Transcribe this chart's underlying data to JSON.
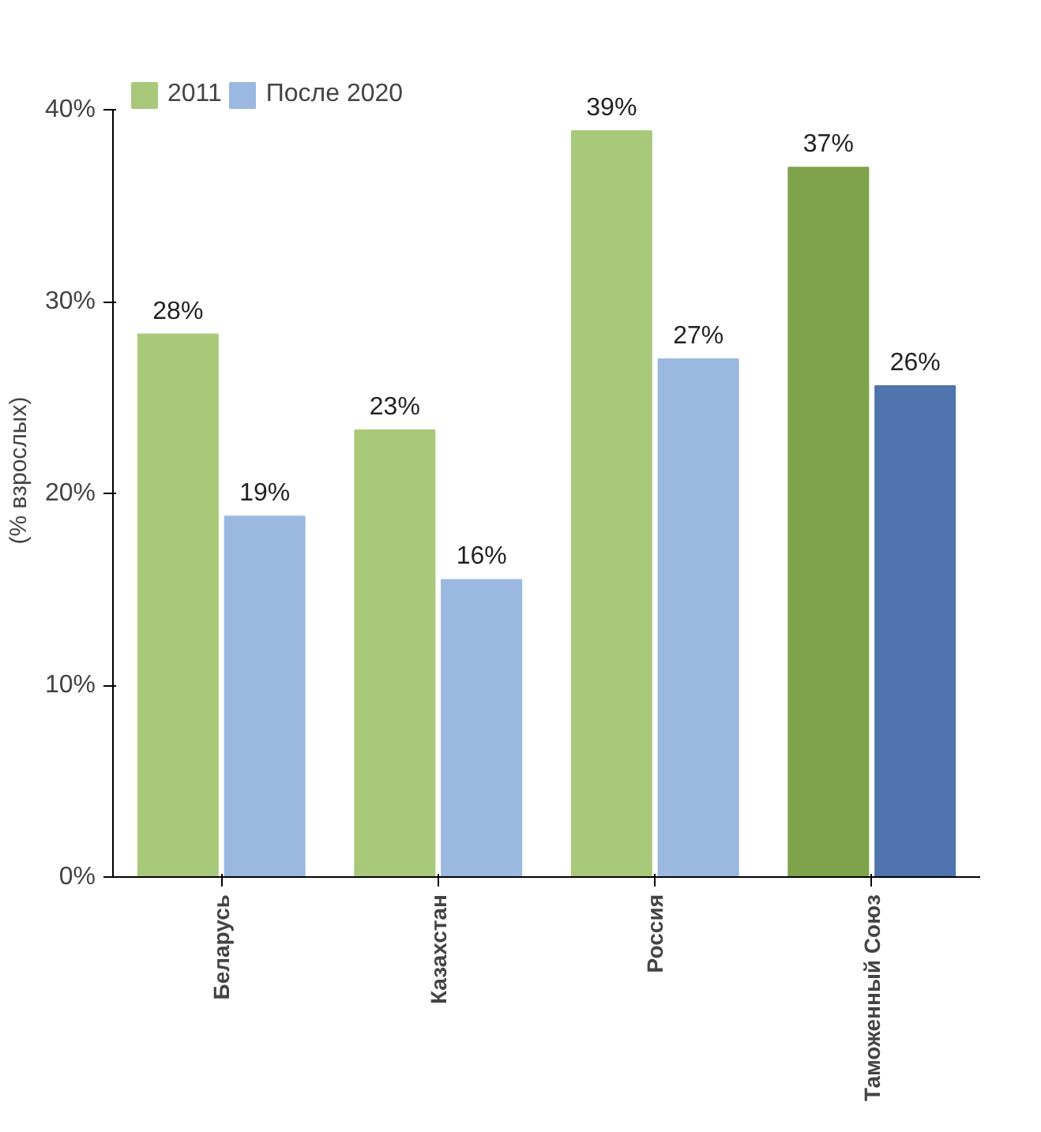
{
  "chart_data": {
    "type": "bar",
    "ylabel": "(% взрослых)",
    "categories": [
      "Беларусь",
      "Казахстан",
      "Россия",
      "Таможенный Союз"
    ],
    "series": [
      {
        "name": "2011",
        "color": "#a9c97a",
        "colors": [
          "#a9c97a",
          "#a9c97a",
          "#a9c97a",
          "#7ea34a"
        ],
        "values": [
          28.3,
          23.3,
          38.9,
          37.0
        ],
        "value_labels": [
          "28%",
          "23%",
          "39%",
          "37%"
        ]
      },
      {
        "name": "После 2020",
        "color": "#9bb8e0",
        "colors": [
          "#9bb8e0",
          "#9bb8e0",
          "#9bb8e0",
          "#4f74ae"
        ],
        "values": [
          18.8,
          15.5,
          27.0,
          25.6
        ],
        "value_labels": [
          "19%",
          "16%",
          "27%",
          "26%"
        ]
      }
    ],
    "ylim": [
      0,
      40
    ],
    "yticks": [
      {
        "value": 0,
        "label": "0%"
      },
      {
        "value": 10,
        "label": "10%"
      },
      {
        "value": 20,
        "label": "20%"
      },
      {
        "value": 30,
        "label": "30%"
      },
      {
        "value": 40,
        "label": "40%"
      }
    ],
    "grid": false,
    "legend": "top left"
  }
}
